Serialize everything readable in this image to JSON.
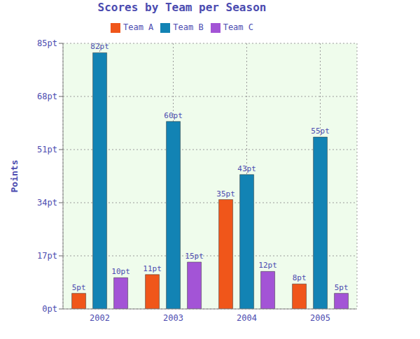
{
  "chart_data": {
    "type": "bar",
    "title": "Scores by Team per Season",
    "y_label": "Points",
    "categories": [
      "2002",
      "2003",
      "2004",
      "2005"
    ],
    "series": [
      {
        "name": "Team A",
        "color": "#f0561a",
        "values": [
          5,
          11,
          35,
          8
        ],
        "value_labels": [
          "5pt",
          "11pt",
          "35pt",
          "8pt"
        ]
      },
      {
        "name": "Team B",
        "color": "#1283b4",
        "values": [
          82,
          60,
          43,
          55
        ],
        "value_labels": [
          "82pt",
          "60pt",
          "43pt",
          "55pt"
        ]
      },
      {
        "name": "Team C",
        "color": "#a354d6",
        "values": [
          10,
          15,
          12,
          5
        ],
        "value_labels": [
          "10pt",
          "15pt",
          "12pt",
          "5pt"
        ]
      }
    ],
    "ylim": [
      0,
      85
    ],
    "yticks": [
      {
        "value": 0,
        "label": "0pt"
      },
      {
        "value": 17,
        "label": "17pt"
      },
      {
        "value": 34,
        "label": "34pt"
      },
      {
        "value": 51,
        "label": "51pt"
      },
      {
        "value": 68,
        "label": "68pt"
      },
      {
        "value": 85,
        "label": "85pt"
      }
    ],
    "grid": true,
    "legend": "top",
    "data_labels": true
  }
}
